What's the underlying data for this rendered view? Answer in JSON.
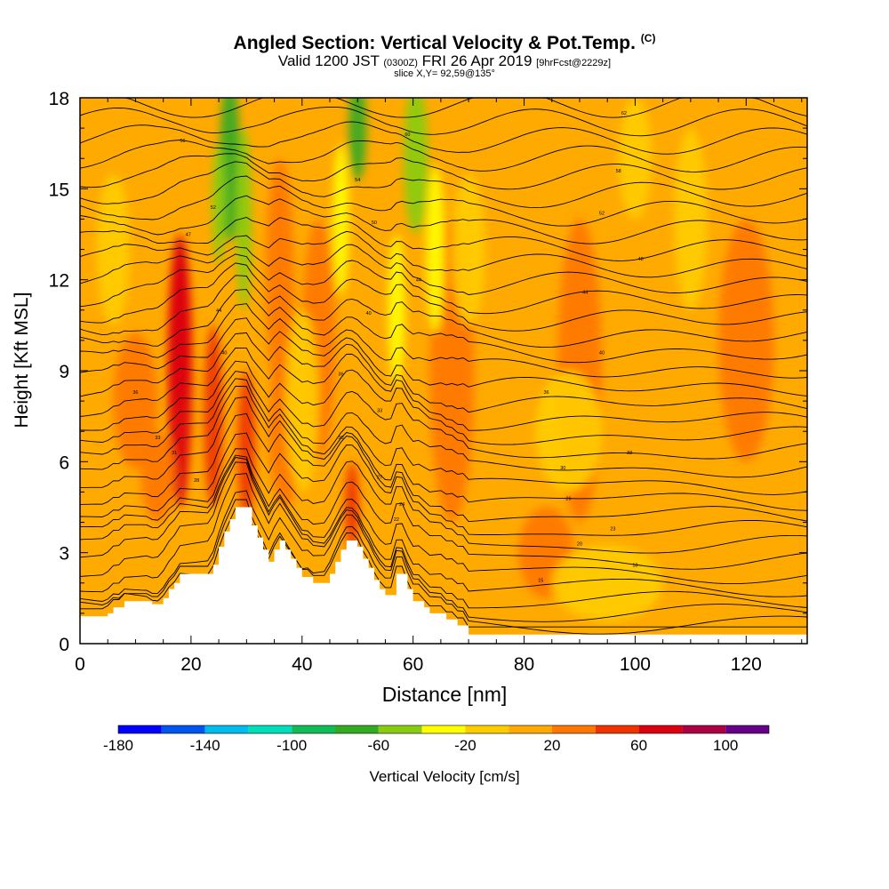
{
  "header": {
    "title": "Angled Section: Vertical Velocity & Pot.Temp.",
    "title_unit": "(C)",
    "subtitle_pre": "Valid 1200 JST",
    "subtitle_utc": "(0300Z)",
    "subtitle_date": "FRI 26 Apr 2019",
    "subtitle_fcst": "[9hrFcst@2229z]",
    "slice": "slice X,Y= 92,59@135°"
  },
  "chart_data": {
    "type": "heatmap",
    "xlabel": "Distance [nm]",
    "ylabel": "Height [Kft MSL]",
    "xlim": [
      0,
      131
    ],
    "ylim": [
      0,
      18
    ],
    "x_ticks": [
      0,
      20,
      40,
      60,
      80,
      100,
      120
    ],
    "y_ticks": [
      0,
      3,
      6,
      9,
      12,
      15,
      18
    ],
    "field": "Vertical Velocity",
    "field_label": "Vertical Velocity [cm/s]",
    "colorbar": {
      "boundaries": [
        -180,
        -160,
        -140,
        -120,
        -100,
        -80,
        -60,
        -40,
        -20,
        0,
        20,
        40,
        60,
        80,
        100,
        120
      ],
      "tick_labels": [
        "-180",
        "-140",
        "-100",
        "-60",
        "-20",
        "20",
        "60",
        "100"
      ],
      "tick_values": [
        -180,
        -140,
        -100,
        -60,
        -20,
        20,
        60,
        100
      ],
      "colors": [
        "#0000ff",
        "#0055ee",
        "#00bbee",
        "#00ddbb",
        "#11bb55",
        "#33aa22",
        "#88cc11",
        "#ffff00",
        "#ffcc00",
        "#ffaa00",
        "#ff7700",
        "#ee3300",
        "#dd0011",
        "#aa0044",
        "#660088"
      ]
    },
    "background_class": 0,
    "velocity_features": [
      {
        "x": 18,
        "y": 9.0,
        "w": 2.2,
        "h": 9.0,
        "v": 65
      },
      {
        "x": 18,
        "y": 10.5,
        "w": 1.8,
        "h": 5.5,
        "v": 75
      },
      {
        "x": 24,
        "y": 7.5,
        "w": 1.7,
        "h": 6.0,
        "v": 55
      },
      {
        "x": 30,
        "y": 6.5,
        "w": 1.6,
        "h": 5.0,
        "v": 50
      },
      {
        "x": 49,
        "y": 4.5,
        "w": 1.3,
        "h": 3.0,
        "v": 55
      },
      {
        "x": 10,
        "y": 8.0,
        "w": 4.0,
        "h": 4.5,
        "v": 30
      },
      {
        "x": 14,
        "y": 5.5,
        "w": 3.0,
        "h": 3.0,
        "v": 30
      },
      {
        "x": 36,
        "y": 12.0,
        "w": 2.5,
        "h": 8.0,
        "v": 30
      },
      {
        "x": 37,
        "y": 7.0,
        "w": 3.0,
        "h": 5.0,
        "v": 25
      },
      {
        "x": 43,
        "y": 10.0,
        "w": 3.0,
        "h": 8.0,
        "v": 25
      },
      {
        "x": 67,
        "y": 9.0,
        "w": 4.0,
        "h": 10.0,
        "v": 25
      },
      {
        "x": 90,
        "y": 9.0,
        "w": 4.0,
        "h": 10.0,
        "v": 25
      },
      {
        "x": 120,
        "y": 10.0,
        "w": 5.0,
        "h": 8.0,
        "v": 25
      },
      {
        "x": 84,
        "y": 3.0,
        "w": 5.0,
        "h": 3.0,
        "v": 25
      },
      {
        "x": 27,
        "y": 16.0,
        "w": 1.8,
        "h": 5.5,
        "v": -70
      },
      {
        "x": 29.5,
        "y": 14.0,
        "w": 1.4,
        "h": 6.0,
        "v": -55
      },
      {
        "x": 25,
        "y": 14.5,
        "w": 1.2,
        "h": 4.0,
        "v": -45
      },
      {
        "x": 50,
        "y": 17.0,
        "w": 1.6,
        "h": 3.5,
        "v": -65
      },
      {
        "x": 60.5,
        "y": 16.0,
        "w": 2.2,
        "h": 5.0,
        "v": -60
      },
      {
        "x": 64,
        "y": 13.0,
        "w": 1.6,
        "h": 5.5,
        "v": -40
      },
      {
        "x": 47,
        "y": 14.0,
        "w": 1.4,
        "h": 5.0,
        "v": -40
      },
      {
        "x": 57,
        "y": 11.0,
        "w": 1.5,
        "h": 5.0,
        "v": -25
      },
      {
        "x": 110,
        "y": 14.0,
        "w": 3.0,
        "h": 6.0,
        "v": -20
      },
      {
        "x": 100,
        "y": 16.0,
        "w": 3.0,
        "h": 4.0,
        "v": -20
      },
      {
        "x": 70,
        "y": 13.0,
        "w": 3.0,
        "h": 5.0,
        "v": -15
      },
      {
        "x": 6,
        "y": 13.0,
        "w": 3.0,
        "h": 5.0,
        "v": -15
      },
      {
        "x": 40,
        "y": 8.0,
        "w": 3.0,
        "h": 6.0,
        "v": -20
      },
      {
        "x": 95,
        "y": 2.0,
        "w": 10.0,
        "h": 2.5,
        "v": -15
      },
      {
        "x": 88,
        "y": 7.0,
        "w": 6.0,
        "h": 4.0,
        "v": -15
      }
    ],
    "terrain": [
      [
        0,
        0.9
      ],
      [
        5,
        0.9
      ],
      [
        5,
        1.0
      ],
      [
        6,
        1.0
      ],
      [
        6,
        1.2
      ],
      [
        8,
        1.2
      ],
      [
        8,
        1.4
      ],
      [
        13,
        1.4
      ],
      [
        13,
        1.3
      ],
      [
        15,
        1.3
      ],
      [
        15,
        1.5
      ],
      [
        16,
        1.5
      ],
      [
        16,
        1.8
      ],
      [
        17,
        1.8
      ],
      [
        17,
        2.0
      ],
      [
        18,
        2.0
      ],
      [
        18,
        2.3
      ],
      [
        24,
        2.3
      ],
      [
        24,
        2.6
      ],
      [
        25,
        2.6
      ],
      [
        25,
        3.2
      ],
      [
        26,
        3.2
      ],
      [
        26,
        3.7
      ],
      [
        27,
        3.7
      ],
      [
        27,
        4.1
      ],
      [
        28,
        4.1
      ],
      [
        28,
        4.5
      ],
      [
        31,
        4.5
      ],
      [
        31,
        3.9
      ],
      [
        32,
        3.9
      ],
      [
        32,
        3.5
      ],
      [
        33,
        3.5
      ],
      [
        33,
        3.1
      ],
      [
        34,
        3.1
      ],
      [
        34,
        2.7
      ],
      [
        35,
        2.7
      ],
      [
        35,
        3.1
      ],
      [
        36,
        3.1
      ],
      [
        36,
        3.4
      ],
      [
        37,
        3.4
      ],
      [
        37,
        3.1
      ],
      [
        38,
        3.1
      ],
      [
        38,
        2.8
      ],
      [
        39,
        2.8
      ],
      [
        39,
        2.5
      ],
      [
        40,
        2.5
      ],
      [
        40,
        2.2
      ],
      [
        42,
        2.2
      ],
      [
        42,
        2.0
      ],
      [
        45,
        2.0
      ],
      [
        45,
        2.3
      ],
      [
        46,
        2.3
      ],
      [
        46,
        2.7
      ],
      [
        47,
        2.7
      ],
      [
        47,
        3.1
      ],
      [
        48,
        3.1
      ],
      [
        48,
        3.4
      ],
      [
        50,
        3.4
      ],
      [
        50,
        3.2
      ],
      [
        51,
        3.2
      ],
      [
        51,
        2.8
      ],
      [
        52,
        2.8
      ],
      [
        52,
        2.5
      ],
      [
        53,
        2.5
      ],
      [
        53,
        2.1
      ],
      [
        54,
        2.1
      ],
      [
        54,
        1.8
      ],
      [
        55,
        1.8
      ],
      [
        55,
        1.6
      ],
      [
        57,
        1.6
      ],
      [
        57,
        2.3
      ],
      [
        59,
        2.3
      ],
      [
        59,
        1.8
      ],
      [
        60,
        1.8
      ],
      [
        60,
        1.4
      ],
      [
        62,
        1.4
      ],
      [
        62,
        1.2
      ],
      [
        63,
        1.2
      ],
      [
        63,
        1.0
      ],
      [
        66,
        1.0
      ],
      [
        66,
        0.8
      ],
      [
        68,
        0.8
      ],
      [
        68,
        0.6
      ],
      [
        70,
        0.6
      ],
      [
        70,
        0.3
      ],
      [
        131,
        0.3
      ]
    ],
    "theta_contour_labels": [
      {
        "x": 18.5,
        "y": 16.6,
        "t": "56"
      },
      {
        "x": 24,
        "y": 14.4,
        "t": "52"
      },
      {
        "x": 19.5,
        "y": 13.5,
        "t": "47"
      },
      {
        "x": 25,
        "y": 11.0,
        "t": "44"
      },
      {
        "x": 26,
        "y": 9.6,
        "t": "40"
      },
      {
        "x": 10,
        "y": 8.3,
        "t": "36"
      },
      {
        "x": 14,
        "y": 6.8,
        "t": "33"
      },
      {
        "x": 17,
        "y": 6.3,
        "t": "31"
      },
      {
        "x": 21,
        "y": 5.4,
        "t": "28"
      },
      {
        "x": 59,
        "y": 16.8,
        "t": "60"
      },
      {
        "x": 50,
        "y": 15.3,
        "t": "54"
      },
      {
        "x": 53,
        "y": 13.9,
        "t": "50"
      },
      {
        "x": 61,
        "y": 12.0,
        "t": "44"
      },
      {
        "x": 52,
        "y": 10.9,
        "t": "40"
      },
      {
        "x": 47,
        "y": 8.9,
        "t": "36"
      },
      {
        "x": 54,
        "y": 7.7,
        "t": "33"
      },
      {
        "x": 47,
        "y": 6.8,
        "t": "30"
      },
      {
        "x": 54,
        "y": 5.5,
        "t": "27"
      },
      {
        "x": 58,
        "y": 4.6,
        "t": "24"
      },
      {
        "x": 57,
        "y": 4.1,
        "t": "22"
      },
      {
        "x": 98,
        "y": 17.5,
        "t": "62"
      },
      {
        "x": 97,
        "y": 15.6,
        "t": "58"
      },
      {
        "x": 94,
        "y": 14.2,
        "t": "52"
      },
      {
        "x": 101,
        "y": 12.7,
        "t": "48"
      },
      {
        "x": 91,
        "y": 11.6,
        "t": "44"
      },
      {
        "x": 94,
        "y": 9.6,
        "t": "40"
      },
      {
        "x": 84,
        "y": 8.3,
        "t": "36"
      },
      {
        "x": 99,
        "y": 6.3,
        "t": "33"
      },
      {
        "x": 87,
        "y": 5.8,
        "t": "30"
      },
      {
        "x": 88,
        "y": 4.8,
        "t": "26"
      },
      {
        "x": 96,
        "y": 3.8,
        "t": "23"
      },
      {
        "x": 90,
        "y": 3.3,
        "t": "20"
      },
      {
        "x": 100,
        "y": 2.6,
        "t": "18"
      },
      {
        "x": 83,
        "y": 2.1,
        "t": "15"
      }
    ]
  },
  "colors": {
    "background": "#ffdd00",
    "contour": "#000000",
    "terrain": "#ffffff"
  }
}
